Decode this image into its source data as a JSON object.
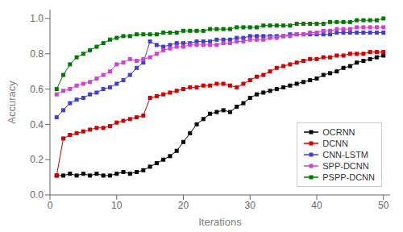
{
  "chart_data": {
    "type": "line",
    "xlabel": "Iterations",
    "ylabel": "Accuracy",
    "x": [
      1,
      2,
      3,
      4,
      5,
      6,
      7,
      8,
      9,
      10,
      11,
      12,
      13,
      14,
      15,
      16,
      17,
      18,
      19,
      20,
      21,
      22,
      23,
      24,
      25,
      26,
      27,
      28,
      29,
      30,
      31,
      32,
      33,
      34,
      35,
      36,
      37,
      38,
      39,
      40,
      41,
      42,
      43,
      44,
      45,
      46,
      47,
      48,
      49,
      50
    ],
    "xlim": [
      0,
      51
    ],
    "xticks": [
      0,
      10,
      20,
      30,
      40,
      50
    ],
    "ylim": [
      0.0,
      1.05
    ],
    "yticks": [
      {
        "value": 0.0,
        "label": "0.0"
      },
      0.2,
      0.4,
      0.6,
      0.8,
      {
        "value": 1.0,
        "label": "1.0"
      }
    ],
    "grid": false,
    "legend": "lower right",
    "marker": "square",
    "series": [
      {
        "name": "OCRNN",
        "color": "#000000",
        "values": [
          0.11,
          0.11,
          0.12,
          0.11,
          0.12,
          0.11,
          0.12,
          0.11,
          0.11,
          0.12,
          0.13,
          0.12,
          0.13,
          0.14,
          0.16,
          0.18,
          0.2,
          0.22,
          0.25,
          0.3,
          0.35,
          0.4,
          0.43,
          0.46,
          0.47,
          0.48,
          0.47,
          0.5,
          0.52,
          0.55,
          0.57,
          0.58,
          0.59,
          0.6,
          0.61,
          0.62,
          0.63,
          0.64,
          0.65,
          0.66,
          0.68,
          0.69,
          0.7,
          0.72,
          0.73,
          0.75,
          0.76,
          0.77,
          0.78,
          0.79
        ]
      },
      {
        "name": "DCNN",
        "color": "#cc0000",
        "values": [
          0.11,
          0.32,
          0.34,
          0.35,
          0.36,
          0.37,
          0.38,
          0.38,
          0.39,
          0.41,
          0.42,
          0.43,
          0.44,
          0.45,
          0.55,
          0.56,
          0.57,
          0.58,
          0.59,
          0.6,
          0.61,
          0.61,
          0.62,
          0.62,
          0.63,
          0.63,
          0.62,
          0.61,
          0.63,
          0.65,
          0.67,
          0.68,
          0.7,
          0.72,
          0.73,
          0.74,
          0.75,
          0.76,
          0.77,
          0.77,
          0.78,
          0.78,
          0.79,
          0.79,
          0.8,
          0.8,
          0.8,
          0.81,
          0.81,
          0.81
        ]
      },
      {
        "name": "CNN-LSTM",
        "color": "#4040cc",
        "values": [
          0.44,
          0.48,
          0.52,
          0.54,
          0.55,
          0.57,
          0.58,
          0.6,
          0.61,
          0.63,
          0.65,
          0.68,
          0.72,
          0.75,
          0.87,
          0.85,
          0.84,
          0.85,
          0.86,
          0.86,
          0.86,
          0.87,
          0.87,
          0.87,
          0.88,
          0.88,
          0.88,
          0.89,
          0.89,
          0.9,
          0.9,
          0.9,
          0.9,
          0.9,
          0.9,
          0.91,
          0.91,
          0.91,
          0.91,
          0.91,
          0.91,
          0.91,
          0.92,
          0.92,
          0.92,
          0.92,
          0.92,
          0.92,
          0.92,
          0.92
        ]
      },
      {
        "name": "SPP-DCNN",
        "color": "#cc44cc",
        "values": [
          0.57,
          0.59,
          0.6,
          0.62,
          0.63,
          0.64,
          0.66,
          0.68,
          0.7,
          0.74,
          0.75,
          0.77,
          0.76,
          0.77,
          0.78,
          0.8,
          0.82,
          0.83,
          0.84,
          0.84,
          0.85,
          0.85,
          0.85,
          0.85,
          0.85,
          0.86,
          0.86,
          0.87,
          0.87,
          0.88,
          0.88,
          0.88,
          0.89,
          0.89,
          0.9,
          0.9,
          0.91,
          0.91,
          0.92,
          0.92,
          0.93,
          0.93,
          0.94,
          0.94,
          0.94,
          0.95,
          0.95,
          0.95,
          0.95,
          0.95
        ]
      },
      {
        "name": "PSPP-DCNN",
        "color": "#007700",
        "values": [
          0.6,
          0.68,
          0.74,
          0.78,
          0.8,
          0.82,
          0.84,
          0.86,
          0.88,
          0.89,
          0.9,
          0.9,
          0.91,
          0.91,
          0.91,
          0.91,
          0.92,
          0.92,
          0.92,
          0.93,
          0.93,
          0.93,
          0.93,
          0.94,
          0.94,
          0.94,
          0.94,
          0.95,
          0.95,
          0.95,
          0.95,
          0.96,
          0.96,
          0.96,
          0.96,
          0.96,
          0.97,
          0.97,
          0.97,
          0.97,
          0.97,
          0.98,
          0.98,
          0.98,
          0.98,
          0.99,
          0.99,
          0.99,
          0.99,
          1.0
        ]
      }
    ]
  }
}
